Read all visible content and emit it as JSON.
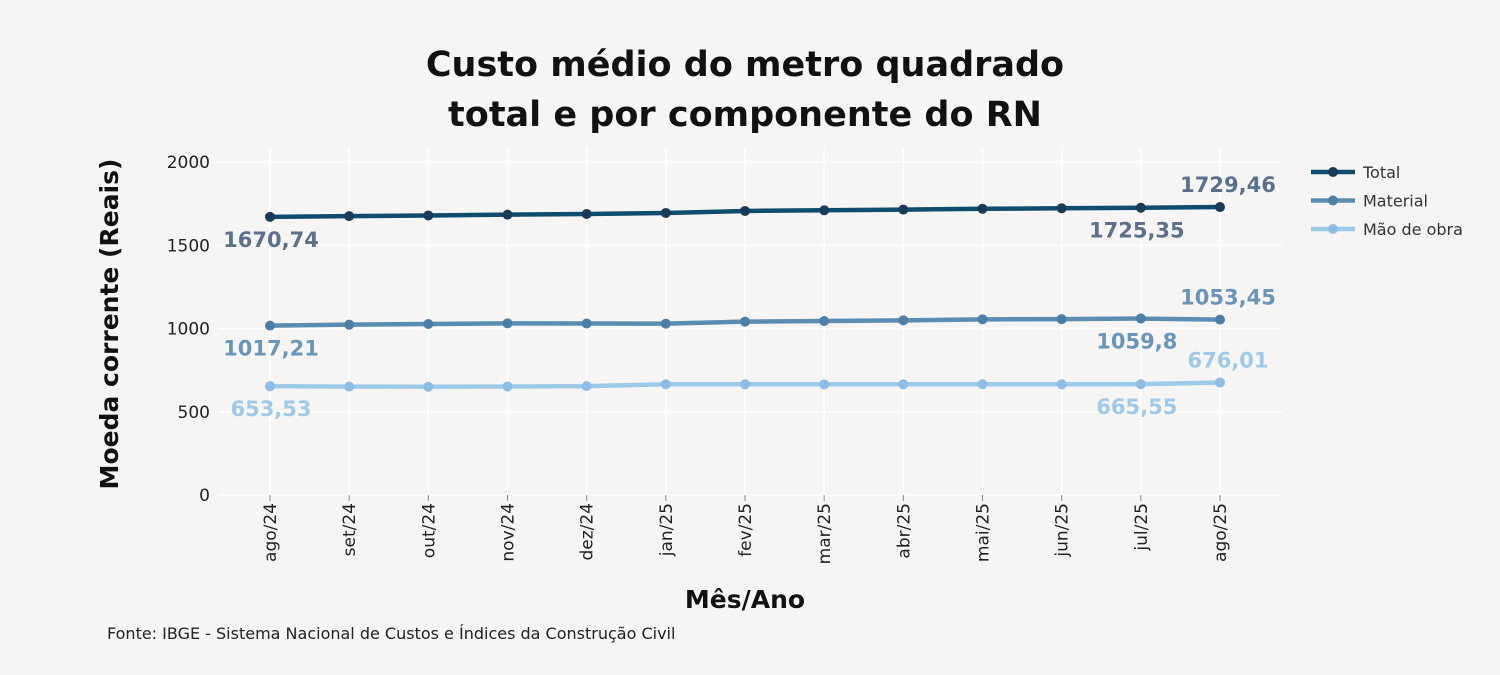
{
  "chart_data": {
    "type": "line",
    "title_line1": "Custo médio do metro quadrado",
    "title_line2": "total e por componente do RN",
    "xlabel": "Mês/Ano",
    "ylabel": "Moeda corrente (Reais)",
    "ylim": [
      0,
      2000
    ],
    "yticks": [
      "0",
      "500",
      "1000",
      "1500",
      "2000"
    ],
    "grid": true,
    "legend_position": "top-right",
    "categories": [
      "ago/24",
      "set/24",
      "out/24",
      "nov/24",
      "dez/24",
      "jan/25",
      "fev/25",
      "mar/25",
      "abr/25",
      "mai/25",
      "jun/25",
      "jul/25",
      "ago/25"
    ],
    "series": [
      {
        "name": "Total",
        "color": "#0f4d6e",
        "marker_color": "#1b3a57",
        "values": [
          1670.74,
          1675,
          1679,
          1684,
          1688,
          1694,
          1706,
          1710,
          1714,
          1719,
          1722,
          1725.35,
          1729.46
        ],
        "labels": [
          {
            "index": 0,
            "text": "1670,74",
            "pos": "below"
          },
          {
            "index": 11,
            "text": "1725,35",
            "pos": "below"
          },
          {
            "index": 12,
            "text": "1729,46",
            "pos": "above"
          }
        ],
        "label_color": "#5a708c"
      },
      {
        "name": "Material",
        "color": "#5b8db3",
        "marker_color": "#4d7fa6",
        "values": [
          1017.21,
          1023,
          1027,
          1031,
          1030,
          1029,
          1041,
          1045,
          1049,
          1055,
          1056,
          1059.8,
          1053.45
        ],
        "labels": [
          {
            "index": 0,
            "text": "1017,21",
            "pos": "below"
          },
          {
            "index": 11,
            "text": "1059,8",
            "pos": "below"
          },
          {
            "index": 12,
            "text": "1053,45",
            "pos": "above"
          }
        ],
        "label_color": "#6a94b8"
      },
      {
        "name": "Mão de obra",
        "color": "#9ecae9",
        "marker_color": "#8bbde6",
        "values": [
          653.53,
          651,
          650,
          652,
          654,
          665,
          665,
          665,
          665,
          665,
          665,
          665.55,
          676.01
        ],
        "labels": [
          {
            "index": 0,
            "text": "653,53",
            "pos": "below"
          },
          {
            "index": 11,
            "text": "665,55",
            "pos": "below"
          },
          {
            "index": 12,
            "text": "676,01",
            "pos": "above"
          }
        ],
        "label_color": "#9ecae9"
      }
    ]
  },
  "source_note": "Fonte: IBGE - Sistema Nacional de Custos e Índices da Construção Civil"
}
